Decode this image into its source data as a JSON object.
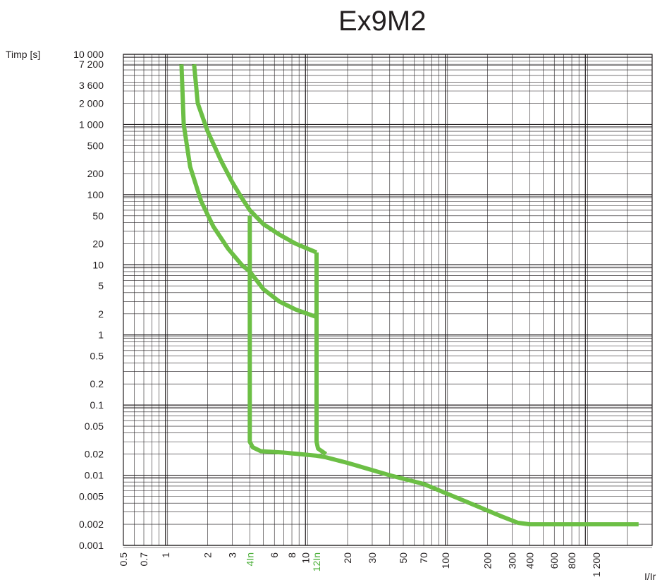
{
  "chart_data": {
    "type": "line",
    "title": "Ex9M2",
    "ylabel": "Timp [s]",
    "xlabel": "I/Ir",
    "xscale": "log",
    "yscale": "log",
    "xlim": [
      0.5,
      3000
    ],
    "ylim": [
      0.001,
      10000
    ],
    "grid": true,
    "colors": {
      "curve": "#6cbf45",
      "highlight_tick": "#4caf3a",
      "grid_major": "#231f20",
      "grid_minor": "#231f20",
      "text": "#231f20"
    },
    "y_ticks": [
      {
        "value": 10000,
        "label": "10 000"
      },
      {
        "value": 7200,
        "label": "7 200"
      },
      {
        "value": 3600,
        "label": "3 600"
      },
      {
        "value": 2000,
        "label": "2 000"
      },
      {
        "value": 1000,
        "label": "1 000"
      },
      {
        "value": 500,
        "label": "500"
      },
      {
        "value": 200,
        "label": "200"
      },
      {
        "value": 100,
        "label": "100"
      },
      {
        "value": 50,
        "label": "50"
      },
      {
        "value": 20,
        "label": "20"
      },
      {
        "value": 10,
        "label": "10"
      },
      {
        "value": 5,
        "label": "5"
      },
      {
        "value": 2,
        "label": "2"
      },
      {
        "value": 1,
        "label": "1"
      },
      {
        "value": 0.5,
        "label": "0.5"
      },
      {
        "value": 0.2,
        "label": "0.2"
      },
      {
        "value": 0.1,
        "label": "0.1"
      },
      {
        "value": 0.05,
        "label": "0.05"
      },
      {
        "value": 0.02,
        "label": "0.02"
      },
      {
        "value": 0.01,
        "label": "0.01"
      },
      {
        "value": 0.005,
        "label": "0.005"
      },
      {
        "value": 0.002,
        "label": "0.002"
      },
      {
        "value": 0.001,
        "label": "0.001"
      }
    ],
    "x_ticks": [
      {
        "value": 0.5,
        "label": "0.5"
      },
      {
        "value": 0.7,
        "label": "0.7"
      },
      {
        "value": 1,
        "label": "1"
      },
      {
        "value": 2,
        "label": "2"
      },
      {
        "value": 3,
        "label": "3"
      },
      {
        "value": 4,
        "label": "4In",
        "highlight": true
      },
      {
        "value": 6,
        "label": "6"
      },
      {
        "value": 8,
        "label": "8"
      },
      {
        "value": 10,
        "label": "10"
      },
      {
        "value": 12,
        "label": "12In",
        "highlight": true
      },
      {
        "value": 20,
        "label": "20"
      },
      {
        "value": 30,
        "label": "30"
      },
      {
        "value": 50,
        "label": "50"
      },
      {
        "value": 70,
        "label": "70"
      },
      {
        "value": 100,
        "label": "100"
      },
      {
        "value": 200,
        "label": "200"
      },
      {
        "value": 300,
        "label": "300"
      },
      {
        "value": 400,
        "label": "400"
      },
      {
        "value": 600,
        "label": "600"
      },
      {
        "value": 800,
        "label": "800"
      },
      {
        "value": 1200,
        "label": "1 200"
      }
    ],
    "series": [
      {
        "points": [
          [
            1.3,
            7200
          ],
          [
            1.35,
            1000
          ],
          [
            1.5,
            250
          ],
          [
            1.8,
            80
          ],
          [
            2.2,
            35
          ],
          [
            2.8,
            17
          ],
          [
            3.5,
            10
          ],
          [
            4.0,
            8
          ],
          [
            5.0,
            4.5
          ],
          [
            6.5,
            3.0
          ],
          [
            8.5,
            2.3
          ],
          [
            12,
            1.8
          ]
        ]
      },
      {
        "points": [
          [
            1.6,
            7200
          ],
          [
            1.7,
            2000
          ],
          [
            2.0,
            800
          ],
          [
            2.5,
            300
          ],
          [
            3.0,
            150
          ],
          [
            3.5,
            90
          ],
          [
            4.0,
            60
          ],
          [
            5.0,
            38
          ],
          [
            6.5,
            27
          ],
          [
            8.5,
            20
          ],
          [
            12,
            15
          ]
        ]
      },
      {
        "points": [
          [
            4.0,
            50
          ],
          [
            4.0,
            0.03
          ],
          [
            4.2,
            0.025
          ],
          [
            4.8,
            0.022
          ],
          [
            7,
            0.021
          ],
          [
            12,
            0.019
          ],
          [
            14,
            0.018
          ],
          [
            20,
            0.015
          ],
          [
            40,
            0.01
          ],
          [
            70,
            0.0075
          ],
          [
            130,
            0.0045
          ],
          [
            250,
            0.0026
          ],
          [
            330,
            0.0021
          ],
          [
            400,
            0.002
          ],
          [
            2400,
            0.002
          ]
        ]
      },
      {
        "points": [
          [
            12,
            15
          ],
          [
            12,
            0.03
          ],
          [
            12.3,
            0.024
          ],
          [
            14,
            0.02
          ]
        ]
      }
    ]
  }
}
